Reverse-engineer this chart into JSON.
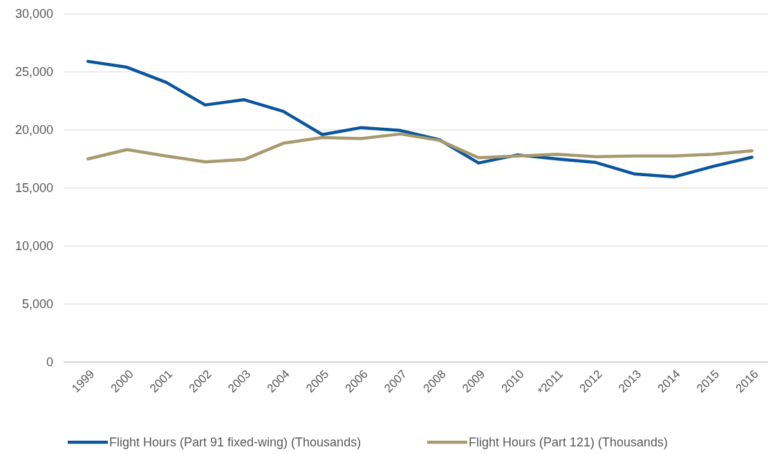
{
  "chart_data": {
    "type": "line",
    "categories": [
      "1999",
      "2000",
      "2001",
      "2002",
      "2003",
      "2004",
      "2005",
      "2006",
      "2007",
      "2008",
      "2009",
      "2010",
      "*2011",
      "2012",
      "2013",
      "2014",
      "2015",
      "2016"
    ],
    "series": [
      {
        "name": "Flight Hours (Part 91 fixed-wing) (Thousands)",
        "color": "#0b559e",
        "values": [
          25900,
          25400,
          24100,
          22150,
          22600,
          21600,
          19600,
          20200,
          19950,
          19150,
          17150,
          17850,
          17500,
          17200,
          16200,
          15950,
          16850,
          17650
        ]
      },
      {
        "name": "Flight Hours (Part 121) (Thousands)",
        "color": "#a89a6e",
        "values": [
          17500,
          18300,
          17750,
          17250,
          17450,
          18850,
          19350,
          19250,
          19650,
          19100,
          17600,
          17750,
          17900,
          17700,
          17750,
          17750,
          17900,
          18200
        ]
      }
    ],
    "ylim": [
      0,
      30000
    ],
    "yticks": [
      {
        "value": 0,
        "label": "0"
      },
      {
        "value": 5000,
        "label": "5,000"
      },
      {
        "value": 10000,
        "label": "10,000"
      },
      {
        "value": 15000,
        "label": "15,000"
      },
      {
        "value": 20000,
        "label": "20,000"
      },
      {
        "value": 25000,
        "label": "25,000"
      },
      {
        "value": 30000,
        "label": "30,000"
      }
    ],
    "grid": "y",
    "legend": "bottom",
    "marker": "none",
    "line_style": "solid"
  }
}
